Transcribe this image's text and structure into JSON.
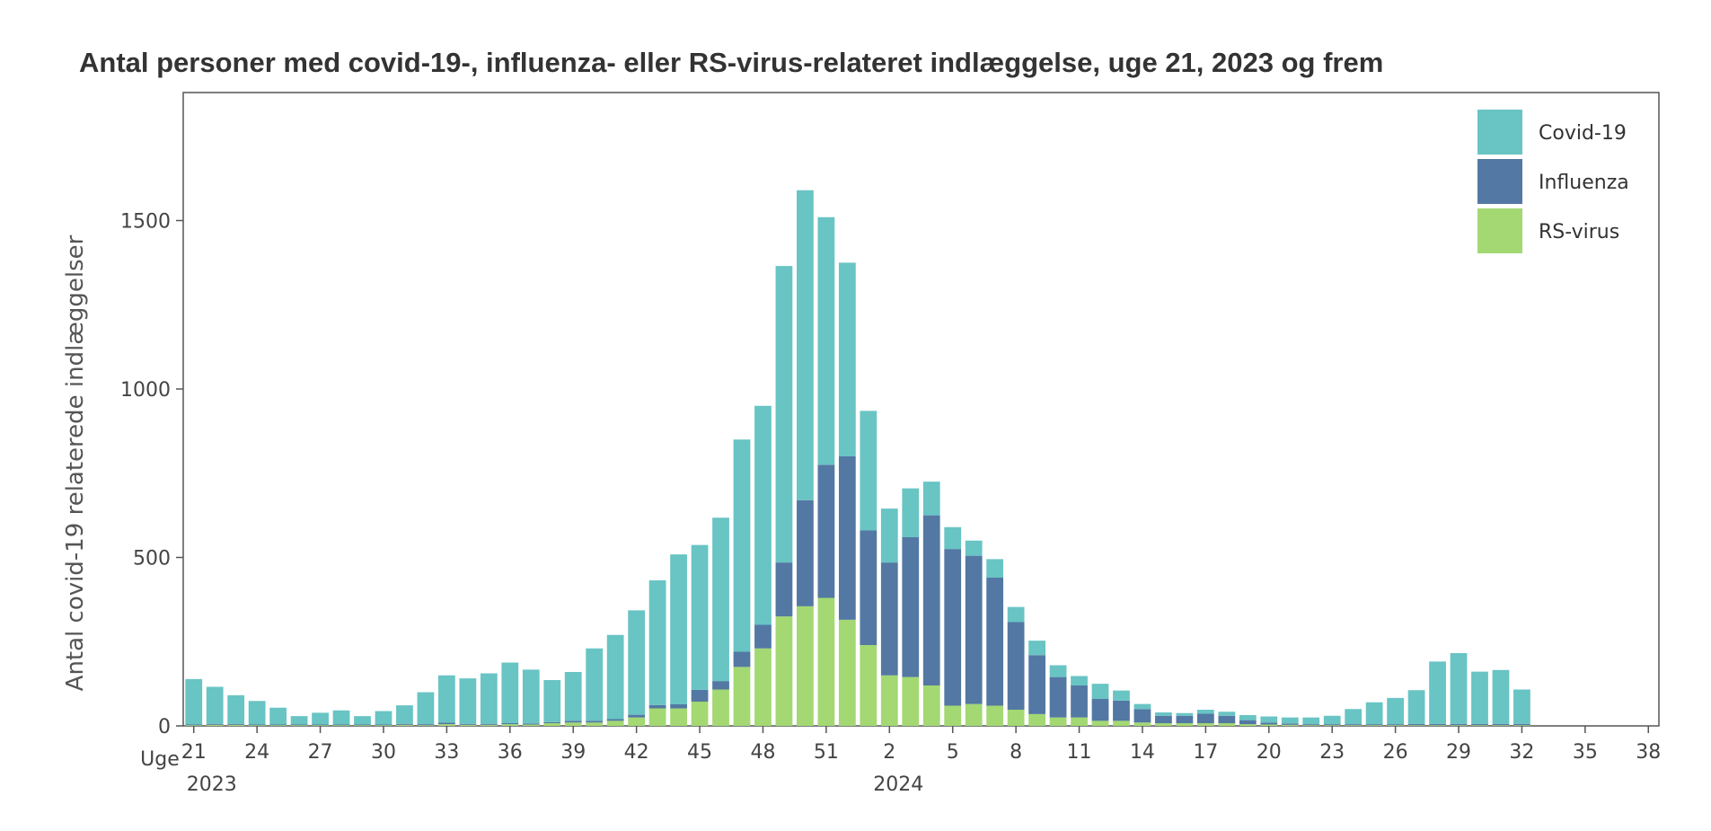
{
  "chart_data": {
    "type": "bar",
    "stacked": true,
    "title": "Antal personer med covid-19-, influenza- eller RS-virus-relateret indlæggelse, uge 21, 2023 og frem",
    "ylabel": "Antal covid-19 relaterede indlæggelser",
    "xlabel_prefix": "Uge",
    "ylim": [
      0,
      1880
    ],
    "yticks": [
      0,
      500,
      1000,
      1500
    ],
    "grid": false,
    "legend_position": "top-right",
    "year_labels": [
      {
        "label": "2023",
        "week": 21
      },
      {
        "label": "2024",
        "week": "2"
      }
    ],
    "tick_labels": [
      "21",
      "24",
      "27",
      "30",
      "33",
      "36",
      "39",
      "42",
      "45",
      "48",
      "51",
      "2",
      "5",
      "8",
      "11",
      "14",
      "17",
      "20",
      "23",
      "26",
      "29",
      "32",
      "35",
      "38"
    ],
    "categories": [
      "21",
      "22",
      "23",
      "24",
      "25",
      "26",
      "27",
      "28",
      "29",
      "30",
      "31",
      "32",
      "33",
      "34",
      "35",
      "36",
      "37",
      "38",
      "39",
      "40",
      "41",
      "42",
      "43",
      "44",
      "45",
      "46",
      "47",
      "48",
      "49",
      "50",
      "51",
      "52",
      "1",
      "2",
      "3",
      "4",
      "5",
      "6",
      "7",
      "8",
      "9",
      "10",
      "11",
      "12",
      "13",
      "14",
      "15",
      "16",
      "17",
      "18",
      "19",
      "20",
      "21",
      "22",
      "23",
      "24",
      "25",
      "26",
      "27",
      "28",
      "29",
      "30",
      "31",
      "32",
      "33",
      "34",
      "35",
      "36",
      "37",
      "38"
    ],
    "series": [
      {
        "name": "RS-virus",
        "color": "#a3d873",
        "values": [
          2,
          3,
          3,
          2,
          2,
          2,
          2,
          2,
          2,
          2,
          3,
          2,
          5,
          3,
          3,
          5,
          4,
          8,
          10,
          10,
          15,
          25,
          52,
          52,
          72,
          108,
          175,
          230,
          325,
          355,
          380,
          315,
          240,
          150,
          145,
          120,
          60,
          65,
          60,
          48,
          35,
          25,
          25,
          15,
          15,
          10,
          8,
          8,
          8,
          8,
          5,
          4,
          3,
          2,
          2,
          2,
          2,
          2,
          2,
          2,
          2,
          2,
          2,
          2,
          0,
          0,
          0,
          0,
          0,
          0
        ]
      },
      {
        "name": "Influenza",
        "color": "#5378a3",
        "values": [
          2,
          3,
          3,
          2,
          2,
          2,
          2,
          2,
          2,
          2,
          3,
          3,
          5,
          3,
          3,
          3,
          3,
          3,
          5,
          5,
          5,
          8,
          10,
          12,
          35,
          25,
          45,
          70,
          160,
          315,
          395,
          485,
          340,
          335,
          415,
          505,
          465,
          440,
          380,
          260,
          175,
          120,
          95,
          65,
          60,
          40,
          22,
          22,
          28,
          22,
          12,
          6,
          4,
          3,
          3,
          3,
          3,
          3,
          4,
          4,
          4,
          4,
          4,
          4,
          0,
          0,
          0,
          0,
          0,
          0
        ]
      },
      {
        "name": "Covid-19",
        "color": "#69c4c4",
        "values": [
          135,
          110,
          85,
          70,
          50,
          25,
          35,
          42,
          25,
          40,
          55,
          95,
          140,
          135,
          150,
          180,
          160,
          125,
          145,
          215,
          250,
          310,
          370,
          445,
          430,
          485,
          630,
          650,
          880,
          920,
          735,
          575,
          355,
          160,
          145,
          100,
          65,
          45,
          55,
          45,
          43,
          35,
          28,
          45,
          30,
          15,
          10,
          8,
          12,
          12,
          15,
          18,
          18,
          20,
          25,
          45,
          65,
          78,
          100,
          185,
          210,
          155,
          160,
          102,
          0,
          0,
          0,
          0,
          0,
          0
        ]
      }
    ]
  }
}
